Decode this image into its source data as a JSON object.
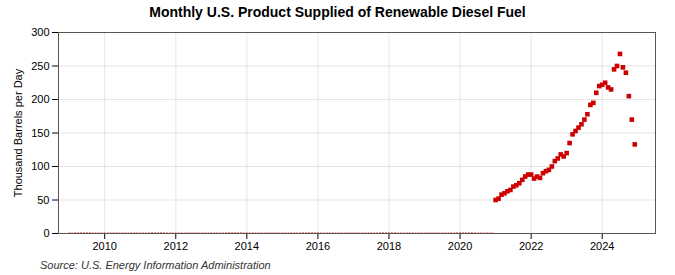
{
  "chart_data": {
    "type": "scatter",
    "title": "Monthly U.S. Product Supplied of Renewable Diesel Fuel",
    "ylabel": "Thousand Barrels per Day",
    "source": "Source: U.S. Energy Information Administration",
    "color": "#cc0000",
    "marker": "square",
    "grid": true,
    "xlim": [
      2008.7,
      2025.5
    ],
    "xticks": [
      2010,
      2012,
      2014,
      2016,
      2018,
      2020,
      2022,
      2024
    ],
    "ylim": [
      0,
      300
    ],
    "yticks": [
      0,
      50,
      100,
      150,
      200,
      250,
      300
    ],
    "x": [
      2009,
      2009.0833333333333,
      2009.1666666666667,
      2009.25,
      2009.3333333333333,
      2009.4166666666667,
      2009.5,
      2009.5833333333333,
      2009.6666666666667,
      2009.75,
      2009.8333333333333,
      2009.9166666666667,
      2010,
      2010.0833333333333,
      2010.1666666666667,
      2010.25,
      2010.3333333333333,
      2010.4166666666667,
      2010.5,
      2010.5833333333333,
      2010.6666666666667,
      2010.75,
      2010.8333333333333,
      2010.9166666666667,
      2011,
      2011.0833333333333,
      2011.1666666666667,
      2011.25,
      2011.3333333333333,
      2011.4166666666667,
      2011.5,
      2011.5833333333333,
      2011.6666666666667,
      2011.75,
      2011.8333333333333,
      2011.9166666666667,
      2012,
      2012.0833333333333,
      2012.1666666666667,
      2012.25,
      2012.3333333333333,
      2012.4166666666667,
      2012.5,
      2012.5833333333333,
      2012.6666666666667,
      2012.75,
      2012.8333333333333,
      2012.9166666666667,
      2013,
      2013.0833333333333,
      2013.1666666666667,
      2013.25,
      2013.3333333333333,
      2013.4166666666667,
      2013.5,
      2013.5833333333333,
      2013.6666666666667,
      2013.75,
      2013.8333333333333,
      2013.9166666666667,
      2014,
      2014.0833333333333,
      2014.1666666666667,
      2014.25,
      2014.3333333333333,
      2014.4166666666667,
      2014.5,
      2014.5833333333333,
      2014.6666666666667,
      2014.75,
      2014.8333333333333,
      2014.9166666666667,
      2015,
      2015.0833333333333,
      2015.1666666666667,
      2015.25,
      2015.3333333333333,
      2015.4166666666667,
      2015.5,
      2015.5833333333333,
      2015.6666666666667,
      2015.75,
      2015.8333333333333,
      2015.9166666666667,
      2016,
      2016.0833333333333,
      2016.1666666666667,
      2016.25,
      2016.3333333333333,
      2016.4166666666667,
      2016.5,
      2016.5833333333333,
      2016.6666666666667,
      2016.75,
      2016.8333333333333,
      2016.9166666666667,
      2017,
      2017.0833333333333,
      2017.1666666666667,
      2017.25,
      2017.3333333333333,
      2017.4166666666667,
      2017.5,
      2017.5833333333333,
      2017.6666666666667,
      2017.75,
      2017.8333333333333,
      2017.9166666666667,
      2018,
      2018.0833333333333,
      2018.1666666666667,
      2018.25,
      2018.3333333333333,
      2018.4166666666667,
      2018.5,
      2018.5833333333333,
      2018.6666666666667,
      2018.75,
      2018.8333333333333,
      2018.9166666666667,
      2019,
      2019.0833333333333,
      2019.1666666666667,
      2019.25,
      2019.3333333333333,
      2019.4166666666667,
      2019.5,
      2019.5833333333333,
      2019.6666666666667,
      2019.75,
      2019.8333333333333,
      2019.9166666666667,
      2020,
      2020.0833333333333,
      2020.1666666666667,
      2020.25,
      2020.3333333333333,
      2020.4166666666667,
      2020.5,
      2020.5833333333333,
      2020.6666666666667,
      2020.75,
      2020.8333333333333,
      2020.9166666666667,
      2021,
      2021.0833333333333,
      2021.1666666666667,
      2021.25,
      2021.3333333333333,
      2021.4166666666667,
      2021.5,
      2021.5833333333333,
      2021.6666666666667,
      2021.75,
      2021.8333333333333,
      2021.9166666666667,
      2022,
      2022.0833333333333,
      2022.1666666666667,
      2022.25,
      2022.3333333333333,
      2022.4166666666667,
      2022.5,
      2022.5833333333333,
      2022.6666666666667,
      2022.75,
      2022.8333333333333,
      2022.9166666666667,
      2023,
      2023.0833333333333,
      2023.1666666666667,
      2023.25,
      2023.3333333333333,
      2023.4166666666667,
      2023.5,
      2023.5833333333333,
      2023.6666666666667,
      2023.75,
      2023.8333333333333,
      2023.9166666666667,
      2024,
      2024.0833333333333,
      2024.1666666666667,
      2024.25,
      2024.3333333333333,
      2024.4166666666667,
      2024.5,
      2024.5833333333333,
      2024.6666666666667,
      2024.75,
      2024.8333333333333,
      2024.9166666666667
    ],
    "values": [
      0,
      0,
      0,
      0,
      0,
      0,
      0,
      0,
      0,
      0,
      0,
      0,
      0,
      0,
      0,
      0,
      0,
      0,
      0,
      0,
      0,
      0,
      0,
      0,
      0,
      0,
      0,
      0,
      0,
      0,
      0,
      0,
      0,
      0,
      0,
      0,
      0,
      0,
      0,
      0,
      0,
      0,
      0,
      0,
      0,
      0,
      0,
      0,
      0,
      0,
      0,
      0,
      0,
      0,
      0,
      0,
      0,
      0,
      0,
      0,
      0,
      0,
      0,
      0,
      0,
      0,
      0,
      0,
      0,
      0,
      0,
      0,
      0,
      0,
      0,
      0,
      0,
      0,
      0,
      0,
      0,
      0,
      0,
      0,
      0,
      0,
      0,
      0,
      0,
      0,
      0,
      0,
      0,
      0,
      0,
      0,
      0,
      0,
      0,
      0,
      0,
      0,
      0,
      0,
      0,
      0,
      0,
      0,
      0,
      0,
      0,
      0,
      0,
      0,
      0,
      0,
      0,
      0,
      0,
      0,
      0,
      0,
      0,
      0,
      0,
      0,
      0,
      0,
      0,
      0,
      0,
      0,
      0,
      0,
      0,
      0,
      0,
      0,
      0,
      0,
      0,
      0,
      0,
      0,
      50,
      52,
      58,
      60,
      63,
      65,
      70,
      72,
      75,
      80,
      85,
      88,
      88,
      82,
      85,
      83,
      90,
      93,
      95,
      100,
      108,
      112,
      118,
      115,
      120,
      135,
      148,
      153,
      158,
      163,
      170,
      178,
      192,
      195,
      210,
      220,
      222,
      225,
      218,
      215,
      245,
      250,
      268,
      248,
      240,
      205,
      170,
      133
    ]
  }
}
